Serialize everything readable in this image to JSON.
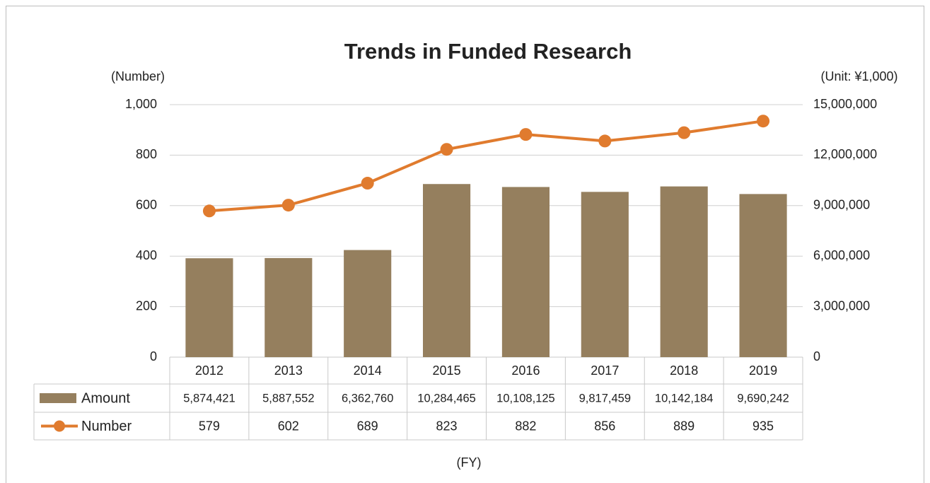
{
  "chart_data": {
    "type": "combo",
    "title": "Trends in Funded Research",
    "y_label": "(Number)",
    "y2_label": "(Unit: ¥1,000)",
    "x_label": "(FY)",
    "categories": [
      "2012",
      "2013",
      "2014",
      "2015",
      "2016",
      "2017",
      "2018",
      "2019"
    ],
    "series": [
      {
        "name": "Amount",
        "type": "bar",
        "axis": "y2",
        "color": "#957f5e",
        "values": [
          5874421,
          5887552,
          6362760,
          10284465,
          10108125,
          9817459,
          10142184,
          9690242
        ],
        "value_labels": [
          "5,874,421",
          "5,887,552",
          "6,362,760",
          "10,284,465",
          "10,108,125",
          "9,817,459",
          "10,142,184",
          "9,690,242"
        ]
      },
      {
        "name": "Number",
        "type": "line",
        "axis": "y",
        "color": "#e07b2e",
        "values": [
          579,
          602,
          689,
          823,
          882,
          856,
          889,
          935
        ]
      }
    ],
    "ylim": [
      0,
      1000
    ],
    "yticks": [
      0,
      200,
      400,
      600,
      800,
      {
        "value": 1000,
        "label": "1,000"
      }
    ],
    "y2lim": [
      0,
      15000000
    ],
    "y2ticks": [
      0,
      {
        "value": 3000000,
        "label": "3,000,000"
      },
      {
        "value": 6000000,
        "label": "6,000,000"
      },
      {
        "value": 9000000,
        "label": "9,000,000"
      },
      {
        "value": 12000000,
        "label": "12,000,000"
      },
      {
        "value": 15000000,
        "label": "15,000,000"
      }
    ],
    "grid": true
  }
}
